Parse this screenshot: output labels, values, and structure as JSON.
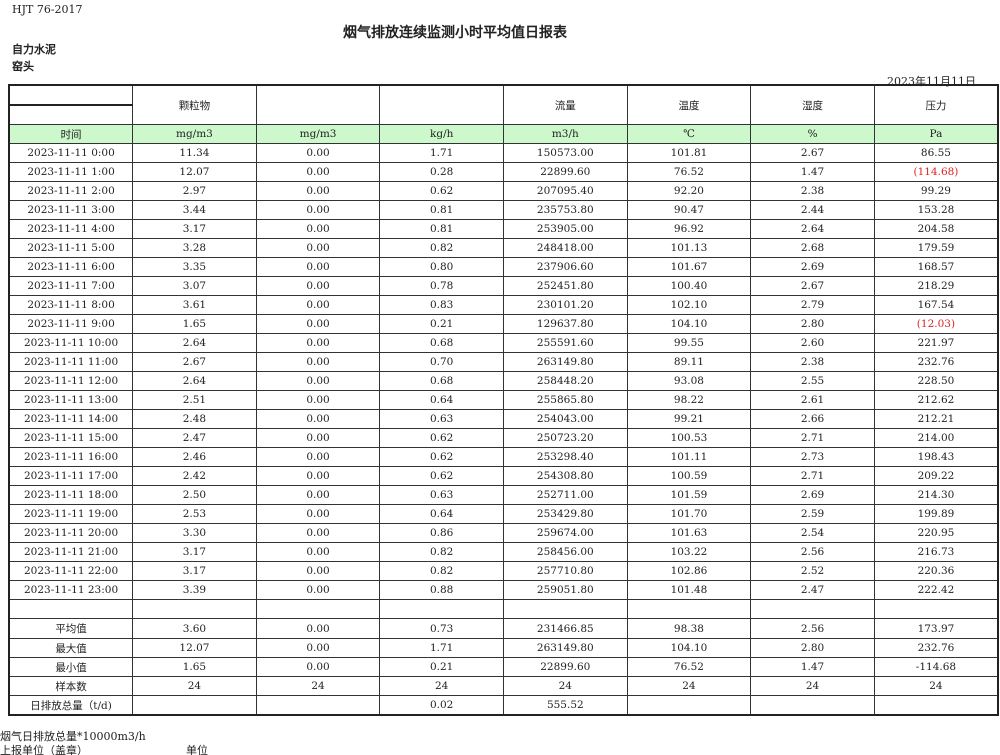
{
  "standard": "HJT  76-2017",
  "title": "烟气排放连续监测小时平均值日报表",
  "company": "自力水泥",
  "location": "窑头",
  "date": "2023年11月11日",
  "header_top": [
    "",
    "颗粒物",
    "",
    "",
    "流量",
    "温度",
    "湿度",
    "压力"
  ],
  "units": [
    "时间",
    "mg/m3",
    "mg/m3",
    "kg/h",
    "m3/h",
    "℃",
    "%",
    "Pa"
  ],
  "rows": [
    [
      "2023-11-11 0:00",
      "11.34",
      "0.00",
      "1.71",
      "150573.00",
      "101.81",
      "2.67",
      "86.55"
    ],
    [
      "2023-11-11 1:00",
      "12.07",
      "0.00",
      "0.28",
      "22899.60",
      "76.52",
      "1.47",
      "(114.68)"
    ],
    [
      "2023-11-11 2:00",
      "2.97",
      "0.00",
      "0.62",
      "207095.40",
      "92.20",
      "2.38",
      "99.29"
    ],
    [
      "2023-11-11 3:00",
      "3.44",
      "0.00",
      "0.81",
      "235753.80",
      "90.47",
      "2.44",
      "153.28"
    ],
    [
      "2023-11-11 4:00",
      "3.17",
      "0.00",
      "0.81",
      "253905.00",
      "96.92",
      "2.64",
      "204.58"
    ],
    [
      "2023-11-11 5:00",
      "3.28",
      "0.00",
      "0.82",
      "248418.00",
      "101.13",
      "2.68",
      "179.59"
    ],
    [
      "2023-11-11 6:00",
      "3.35",
      "0.00",
      "0.80",
      "237906.60",
      "101.67",
      "2.69",
      "168.57"
    ],
    [
      "2023-11-11 7:00",
      "3.07",
      "0.00",
      "0.78",
      "252451.80",
      "100.40",
      "2.67",
      "218.29"
    ],
    [
      "2023-11-11 8:00",
      "3.61",
      "0.00",
      "0.83",
      "230101.20",
      "102.10",
      "2.79",
      "167.54"
    ],
    [
      "2023-11-11 9:00",
      "1.65",
      "0.00",
      "0.21",
      "129637.80",
      "104.10",
      "2.80",
      "(12.03)"
    ],
    [
      "2023-11-11 10:00",
      "2.64",
      "0.00",
      "0.68",
      "255591.60",
      "99.55",
      "2.60",
      "221.97"
    ],
    [
      "2023-11-11 11:00",
      "2.67",
      "0.00",
      "0.70",
      "263149.80",
      "89.11",
      "2.38",
      "232.76"
    ],
    [
      "2023-11-11 12:00",
      "2.64",
      "0.00",
      "0.68",
      "258448.20",
      "93.08",
      "2.55",
      "228.50"
    ],
    [
      "2023-11-11 13:00",
      "2.51",
      "0.00",
      "0.64",
      "255865.80",
      "98.22",
      "2.61",
      "212.62"
    ],
    [
      "2023-11-11 14:00",
      "2.48",
      "0.00",
      "0.63",
      "254043.00",
      "99.21",
      "2.66",
      "212.21"
    ],
    [
      "2023-11-11 15:00",
      "2.47",
      "0.00",
      "0.62",
      "250723.20",
      "100.53",
      "2.71",
      "214.00"
    ],
    [
      "2023-11-11 16:00",
      "2.46",
      "0.00",
      "0.62",
      "253298.40",
      "101.11",
      "2.73",
      "198.43"
    ],
    [
      "2023-11-11 17:00",
      "2.42",
      "0.00",
      "0.62",
      "254308.80",
      "100.59",
      "2.71",
      "209.22"
    ],
    [
      "2023-11-11 18:00",
      "2.50",
      "0.00",
      "0.63",
      "252711.00",
      "101.59",
      "2.69",
      "214.30"
    ],
    [
      "2023-11-11 19:00",
      "2.53",
      "0.00",
      "0.64",
      "253429.80",
      "101.70",
      "2.59",
      "199.89"
    ],
    [
      "2023-11-11 20:00",
      "3.30",
      "0.00",
      "0.86",
      "259674.00",
      "101.63",
      "2.54",
      "220.95"
    ],
    [
      "2023-11-11 21:00",
      "3.17",
      "0.00",
      "0.82",
      "258456.00",
      "103.22",
      "2.56",
      "216.73"
    ],
    [
      "2023-11-11 22:00",
      "3.17",
      "0.00",
      "0.82",
      "257710.80",
      "102.86",
      "2.52",
      "220.36"
    ],
    [
      "2023-11-11 23:00",
      "3.39",
      "0.00",
      "0.88",
      "259051.80",
      "101.48",
      "2.47",
      "222.42"
    ]
  ],
  "red_values": [
    "(114.68)",
    "(12.03)"
  ],
  "red_color": "#e02020",
  "header_green": "#ccf8cc",
  "summary": [
    [
      "平均值",
      "3.60",
      "0.00",
      "0.73",
      "231466.85",
      "98.38",
      "2.56",
      "173.97"
    ],
    [
      "最大值",
      "12.07",
      "0.00",
      "1.71",
      "263149.80",
      "104.10",
      "2.80",
      "232.76"
    ],
    [
      "最小值",
      "1.65",
      "0.00",
      "0.21",
      "22899.60",
      "76.52",
      "1.47",
      "-114.68"
    ],
    [
      "样本数",
      "24",
      "24",
      "24",
      "24",
      "24",
      "24",
      "24"
    ],
    [
      "日排放总量（t/d)",
      "",
      "",
      "0.02",
      "555.52",
      "",
      "",
      ""
    ]
  ],
  "footer": {
    "note": "烟气日排放总量*10000m3/h",
    "reporter_label": "上报单位（盖章）",
    "unit_label": "单位"
  }
}
